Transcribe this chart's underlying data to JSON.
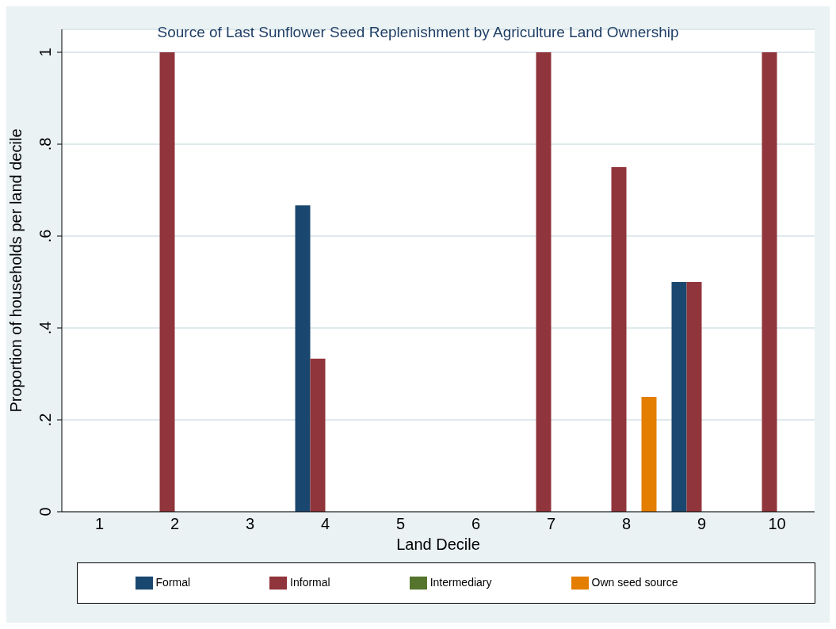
{
  "chart_data": {
    "type": "bar",
    "title": "Source of Last Sunflower Seed Replenishment by Agriculture Land Ownership",
    "xlabel": "Land Decile",
    "ylabel": "Proportion of households per land decile",
    "categories": [
      "1",
      "2",
      "3",
      "4",
      "5",
      "6",
      "7",
      "8",
      "9",
      "10"
    ],
    "series": [
      {
        "name": "Formal",
        "color": "#1a476f",
        "values": [
          null,
          null,
          null,
          0.667,
          null,
          null,
          null,
          null,
          0.5,
          null
        ]
      },
      {
        "name": "Informal",
        "color": "#90353b",
        "values": [
          null,
          1,
          null,
          0.333,
          null,
          null,
          1,
          0.75,
          0.5,
          1
        ]
      },
      {
        "name": "Intermediary",
        "color": "#55752f",
        "values": [
          null,
          null,
          null,
          null,
          null,
          null,
          null,
          null,
          null,
          null
        ]
      },
      {
        "name": "Own seed source",
        "color": "#e37e00",
        "values": [
          null,
          null,
          null,
          null,
          null,
          null,
          null,
          0.25,
          null,
          null
        ]
      }
    ],
    "ylim": [
      0,
      1.05
    ],
    "yticks": [
      0,
      {
        "value": 0.2,
        "label": ".2"
      },
      {
        "value": 0.4,
        "label": ".4"
      },
      {
        "value": 0.6,
        "label": ".6"
      },
      {
        "value": 0.8,
        "label": ".8"
      },
      1
    ],
    "grid": "y",
    "legend": "bottom"
  }
}
